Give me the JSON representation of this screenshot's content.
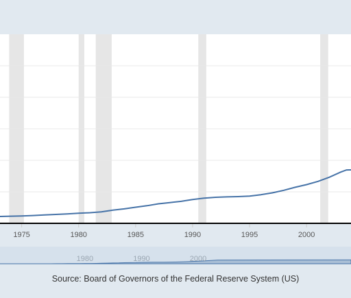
{
  "chart_data": {
    "type": "line",
    "title": "",
    "xlabel": "",
    "ylabel": "",
    "x_ticks": [
      1975,
      1980,
      1985,
      1990,
      1995,
      2000
    ],
    "xlim": [
      1973.1,
      2003.9
    ],
    "grid": "horizontal",
    "recessions": [
      [
        1973.9,
        1975.2
      ],
      [
        1980.0,
        1980.5
      ],
      [
        1981.5,
        1982.9
      ],
      [
        1990.5,
        1991.2
      ],
      [
        2001.2,
        2001.9
      ]
    ],
    "series": [
      {
        "name": "",
        "color": "#4572a7",
        "x": [
          1973.1,
          1974.0,
          1975.0,
          1976.0,
          1977.0,
          1978.0,
          1979.0,
          1980.0,
          1981.0,
          1982.0,
          1983.0,
          1984.0,
          1985.0,
          1986.0,
          1987.0,
          1988.0,
          1989.0,
          1990.0,
          1991.0,
          1992.0,
          1993.0,
          1994.0,
          1995.0,
          1996.0,
          1997.0,
          1998.0,
          1999.0,
          2000.0,
          2001.0,
          2002.0,
          2003.0,
          2003.5,
          2003.9
        ],
        "values": [
          0.0,
          0.3,
          0.6,
          1.1,
          1.8,
          2.4,
          3.0,
          3.7,
          4.4,
          5.4,
          7.3,
          8.8,
          10.7,
          12.5,
          14.7,
          16.1,
          17.5,
          19.6,
          21.2,
          22.2,
          22.7,
          23.0,
          23.6,
          25.2,
          27.4,
          30.3,
          33.8,
          36.9,
          40.6,
          45.5,
          51.4,
          53.9,
          54.0
        ]
      }
    ]
  },
  "navigator": {
    "labels": [
      "1980",
      "1990",
      "2000"
    ]
  },
  "footer": {
    "source": "Source: Board of Governors of the Federal Reserve System (US)"
  }
}
